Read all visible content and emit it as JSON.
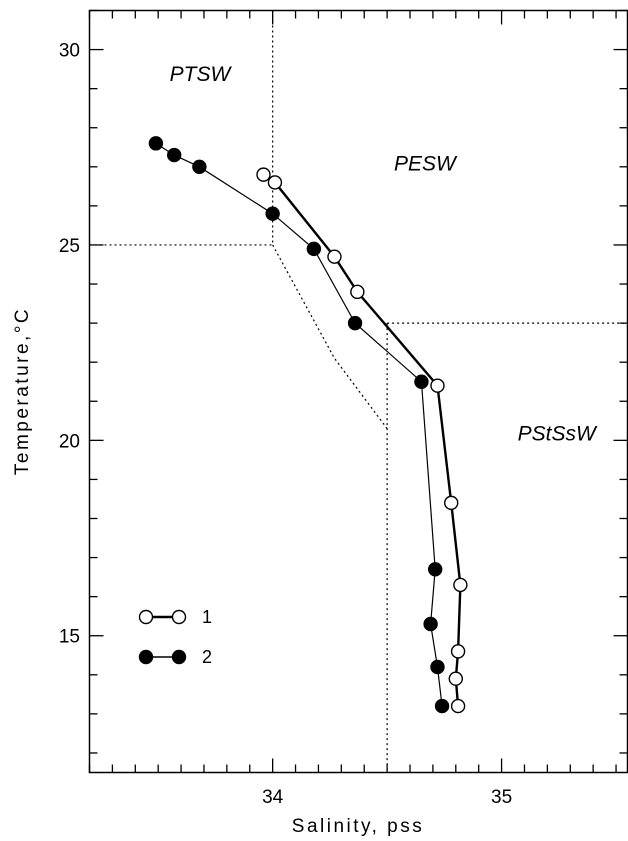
{
  "chart_data": {
    "type": "line",
    "xlabel": "Salinity, pss",
    "ylabel": "Temperature,°C",
    "xlim": [
      33.2,
      35.55
    ],
    "ylim": [
      11.5,
      31
    ],
    "x_ticks": [
      34,
      35
    ],
    "x_tick_labels": [
      "34",
      "35"
    ],
    "y_ticks": [
      15,
      20,
      25,
      30
    ],
    "y_tick_labels": [
      "15",
      "20",
      "25",
      "30"
    ],
    "x_minor_step": 0.1,
    "y_minor_step": 1,
    "grid": false,
    "legend_position": "lower-left",
    "series": [
      {
        "name": "1",
        "marker": "open-circle",
        "line": "thick",
        "color": "#000000",
        "points": [
          [
            33.96,
            26.8
          ],
          [
            34.01,
            26.6
          ],
          [
            34.27,
            24.7
          ],
          [
            34.37,
            23.8
          ],
          [
            34.72,
            21.4
          ],
          [
            34.78,
            18.4
          ],
          [
            34.82,
            16.3
          ],
          [
            34.81,
            14.6
          ],
          [
            34.8,
            13.9
          ],
          [
            34.81,
            13.2
          ]
        ]
      },
      {
        "name": "2",
        "marker": "filled-circle",
        "line": "thin",
        "color": "#000000",
        "points": [
          [
            33.49,
            27.6
          ],
          [
            33.57,
            27.3
          ],
          [
            33.68,
            27.0
          ],
          [
            34.0,
            25.8
          ],
          [
            34.18,
            24.9
          ],
          [
            34.36,
            23.0
          ],
          [
            34.65,
            21.5
          ],
          [
            34.71,
            16.7
          ],
          [
            34.69,
            15.3
          ],
          [
            34.72,
            14.2
          ],
          [
            34.74,
            13.2
          ]
        ]
      }
    ],
    "annotations": [
      {
        "label": "PTSW",
        "x": 33.55,
        "y": 29.2
      },
      {
        "label": "PESW",
        "x": 34.53,
        "y": 26.9
      },
      {
        "label": "PStSsW",
        "x": 35.07,
        "y": 20.0
      }
    ],
    "boundaries": [
      {
        "points": [
          [
            34.0,
            31.0
          ],
          [
            34.0,
            25.0
          ]
        ]
      },
      {
        "points": [
          [
            33.2,
            25.0
          ],
          [
            34.0,
            25.0
          ]
        ]
      },
      {
        "points": [
          [
            34.0,
            25.0
          ],
          [
            34.27,
            22.1
          ],
          [
            34.5,
            20.3
          ]
        ]
      },
      {
        "points": [
          [
            34.5,
            23.0
          ],
          [
            35.55,
            23.0
          ]
        ]
      },
      {
        "points": [
          [
            34.5,
            23.0
          ],
          [
            34.5,
            11.5
          ]
        ]
      }
    ]
  }
}
